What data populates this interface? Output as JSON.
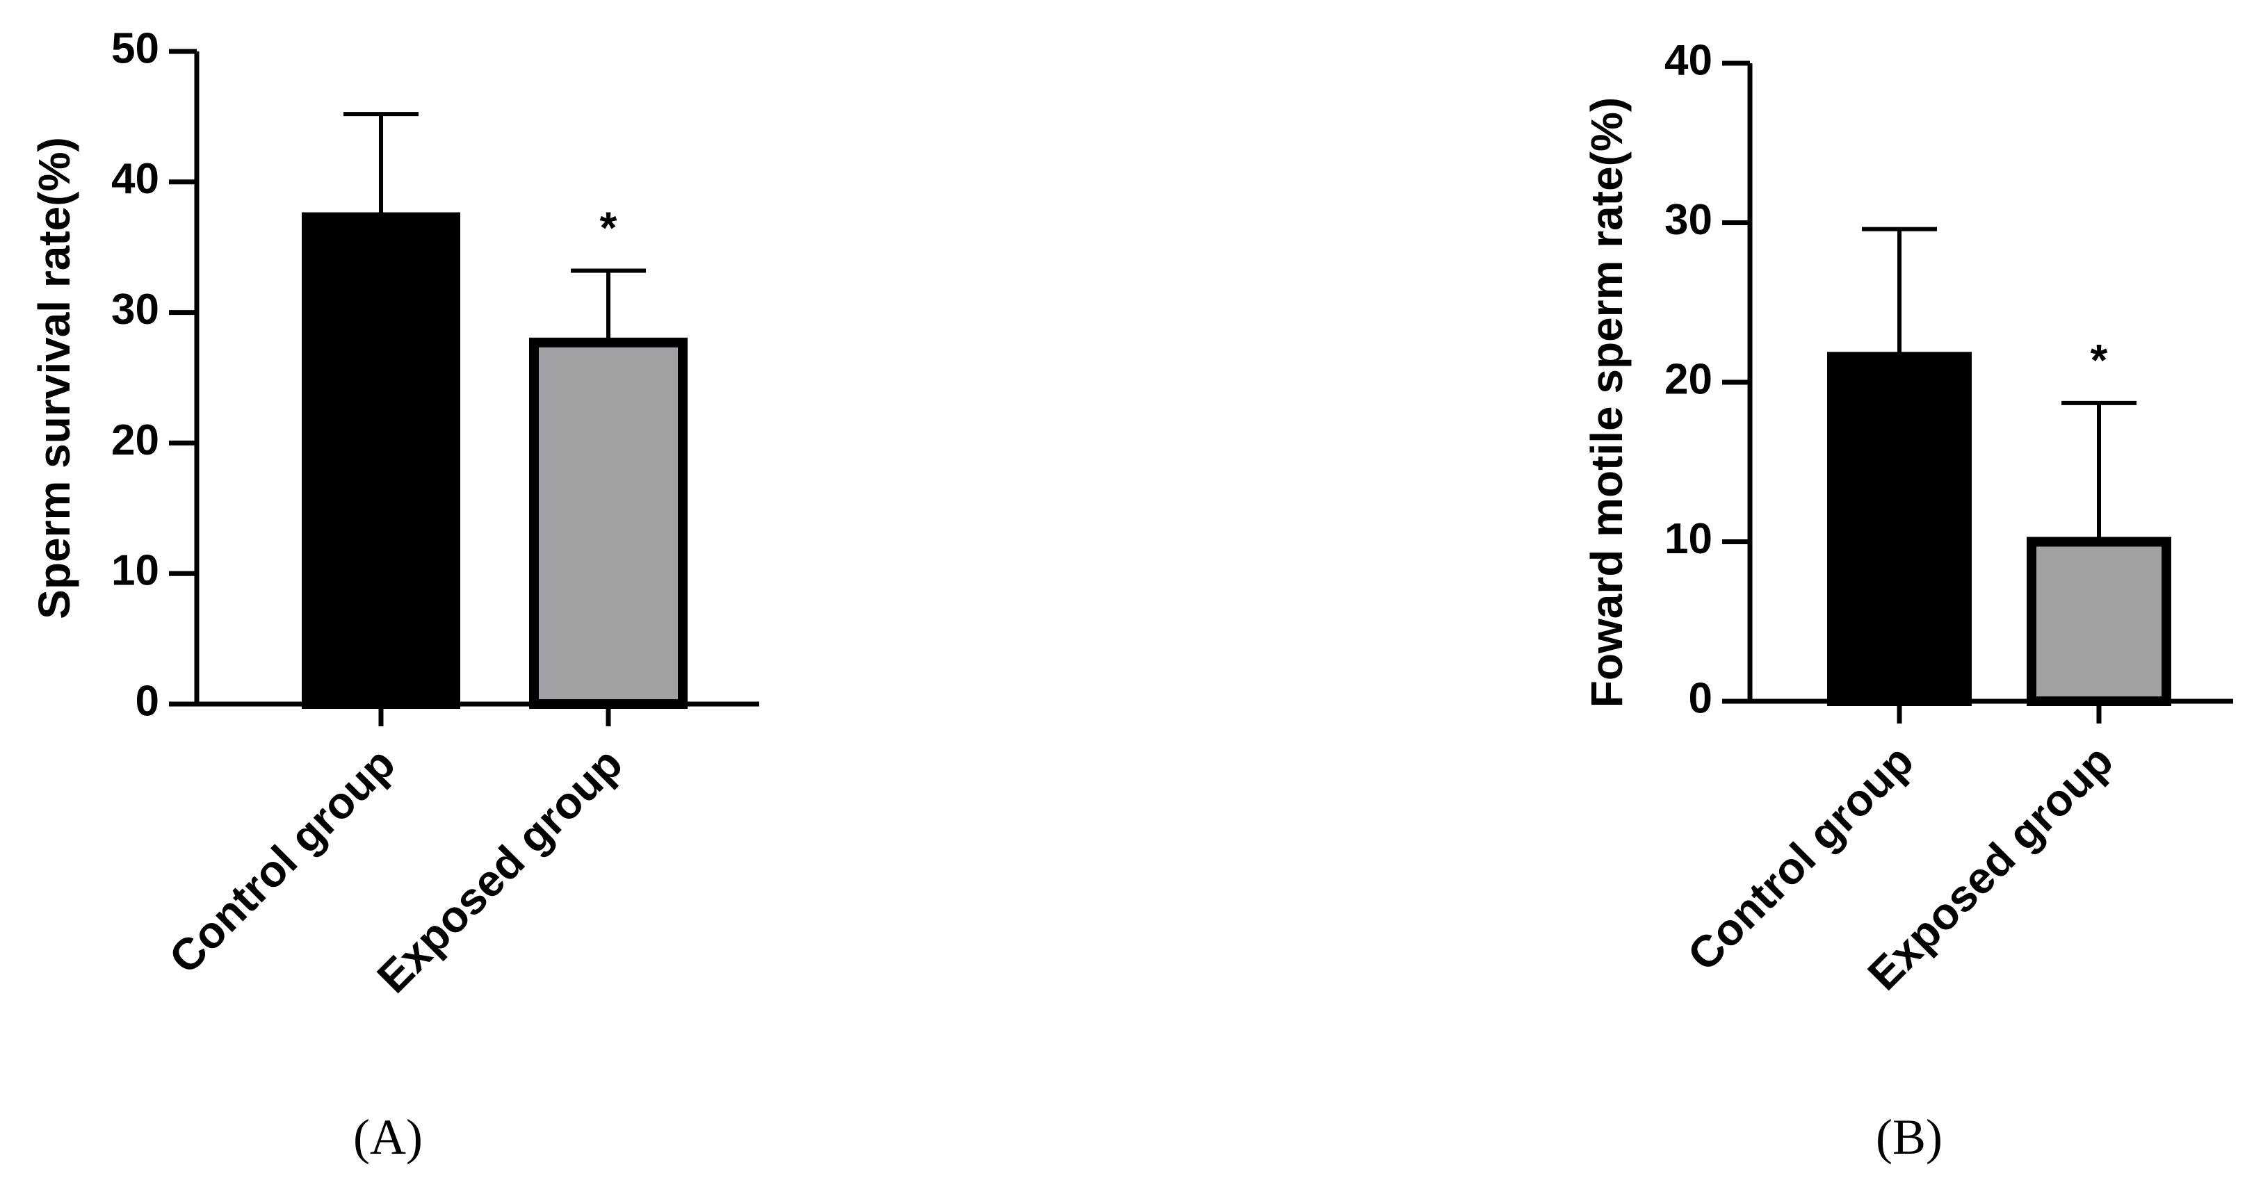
{
  "chart_data": [
    {
      "type": "bar",
      "panel": "(A)",
      "y_label": "Sperm survival rate(%)",
      "categories": [
        "Control group",
        "Exposed group"
      ],
      "values": [
        37.3,
        27.7
      ],
      "errors": [
        7.9,
        5.5
      ],
      "colors": [
        "#000000",
        "#a0a0a5"
      ],
      "significance": [
        null,
        "*"
      ],
      "ylim": [
        0,
        50
      ],
      "yticks": [
        0,
        10,
        20,
        30,
        40,
        50
      ]
    },
    {
      "type": "bar",
      "panel": "(B)",
      "y_label": "Foward motile sperm rate(%)",
      "categories": [
        "Control group",
        "Exposed group"
      ],
      "values": [
        21.6,
        10.0
      ],
      "errors": [
        8.0,
        8.7
      ],
      "colors": [
        "#000000",
        "#a0a0a5"
      ],
      "significance": [
        null,
        "*"
      ],
      "ylim": [
        0,
        40
      ],
      "yticks": [
        0,
        10,
        20,
        30,
        40
      ]
    }
  ]
}
